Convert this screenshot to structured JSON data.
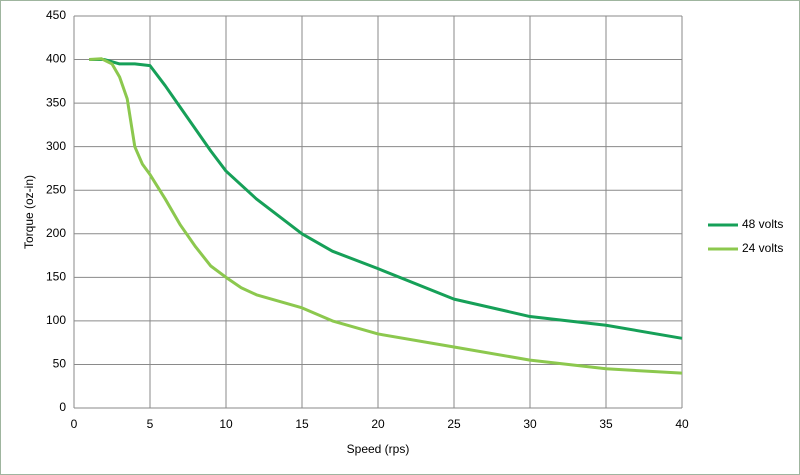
{
  "chart_data": {
    "type": "line",
    "xlabel": "Speed (rps)",
    "ylabel": "Torque (oz-in)",
    "xlim": [
      0,
      40
    ],
    "xticks": [
      0,
      5,
      10,
      15,
      20,
      25,
      30,
      35,
      40
    ],
    "ylim": [
      0,
      450
    ],
    "yticks": [
      0,
      50,
      100,
      150,
      200,
      250,
      300,
      350,
      400,
      450
    ],
    "grid": true,
    "legend": "right",
    "series": [
      {
        "name": "48 volts",
        "color": "#16a058",
        "x": [
          1,
          2,
          3,
          4,
          5,
          6,
          7,
          8,
          9,
          10,
          12,
          15,
          17,
          20,
          25,
          30,
          35,
          40
        ],
        "values": [
          400,
          400,
          395,
          395,
          393,
          370,
          345,
          320,
          295,
          272,
          240,
          200,
          180,
          160,
          125,
          105,
          95,
          80
        ]
      },
      {
        "name": "24 volts",
        "color": "#8cc84e",
        "x": [
          1,
          1.8,
          2.5,
          3,
          3.5,
          4,
          4.5,
          5,
          6,
          7,
          8,
          9,
          10,
          11,
          12,
          15,
          17,
          20,
          25,
          30,
          35,
          40
        ],
        "values": [
          400,
          401,
          395,
          380,
          355,
          300,
          280,
          268,
          240,
          210,
          185,
          163,
          150,
          138,
          130,
          115,
          100,
          85,
          70,
          55,
          45,
          40
        ]
      }
    ]
  }
}
